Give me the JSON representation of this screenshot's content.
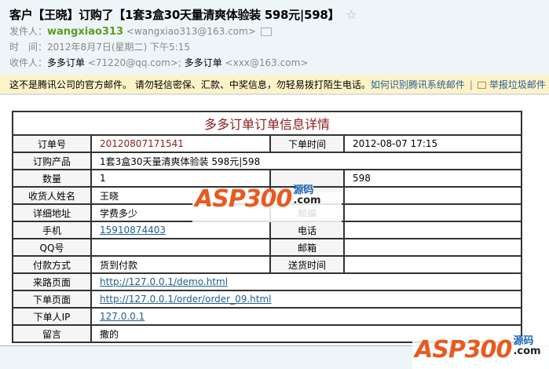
{
  "email": {
    "subject": "客户【王晓】订购了【1套3盒30天量清爽体验装 598元|598】",
    "from_label": "发件人：",
    "from_name": "wangxiao313",
    "from_addr": "<wangxiao313@163.com>",
    "time_label": "时　间：",
    "time": "2012年8月7日(星期二) 下午5:15",
    "to_label": "收件人：",
    "to": [
      {
        "name": "多多订单",
        "addr": "<71220@qq.com>;"
      },
      {
        "name": "多多订单",
        "addr": "<xxx@163.com>"
      }
    ]
  },
  "warning": {
    "text": "这不是腾讯公司的官方邮件。 请勿轻信密保、汇款、中奖信息，勿轻易拨打陌生电话。",
    "link1": "如何识别腾讯系统邮件",
    "sep": "|",
    "link2": "举报垃圾邮件"
  },
  "order": {
    "title": "多多订单订单信息详情",
    "rows": [
      {
        "l1": "订单号",
        "v1": "20120807171541",
        "l2": "下单时间",
        "v2": "2012-08-07 17:15"
      },
      {
        "l1": "订购产品",
        "v1": "1套3盒30天量清爽体验装 598元|598"
      },
      {
        "l1": "数量",
        "v1": "1",
        "l2": "",
        "v2": "598"
      },
      {
        "l1": "收货人姓名",
        "v1": "王晓",
        "l2": "",
        "v2": ""
      },
      {
        "l1": "详细地址",
        "v1": "学费多少",
        "l2": "邮编",
        "v2": ""
      },
      {
        "l1": "手机",
        "v1": "15910874403",
        "l2": "电话",
        "v2": ""
      },
      {
        "l1": "QQ号",
        "v1": "",
        "l2": "邮箱",
        "v2": ""
      },
      {
        "l1": "付款方式",
        "v1": "货到付款",
        "l2": "送货时间",
        "v2": ""
      },
      {
        "l1": "来路页面",
        "v1": "http://127.0.0.1/demo.html"
      },
      {
        "l1": "下单页面",
        "v1": "http://127.0.0.1/order/order_09.html"
      },
      {
        "l1": "下单人IP",
        "v1": "127.0.0.1"
      },
      {
        "l1": "留言",
        "v1": "撒的"
      }
    ]
  },
  "watermark": {
    "brand": "ASP300",
    "src": "源码",
    "tld": ".com"
  },
  "colors": {
    "accent": "#8b1c1c",
    "link": "#1f5f8f",
    "sender": "#5a9e1c",
    "warn_bg": "#fdf3c8"
  }
}
